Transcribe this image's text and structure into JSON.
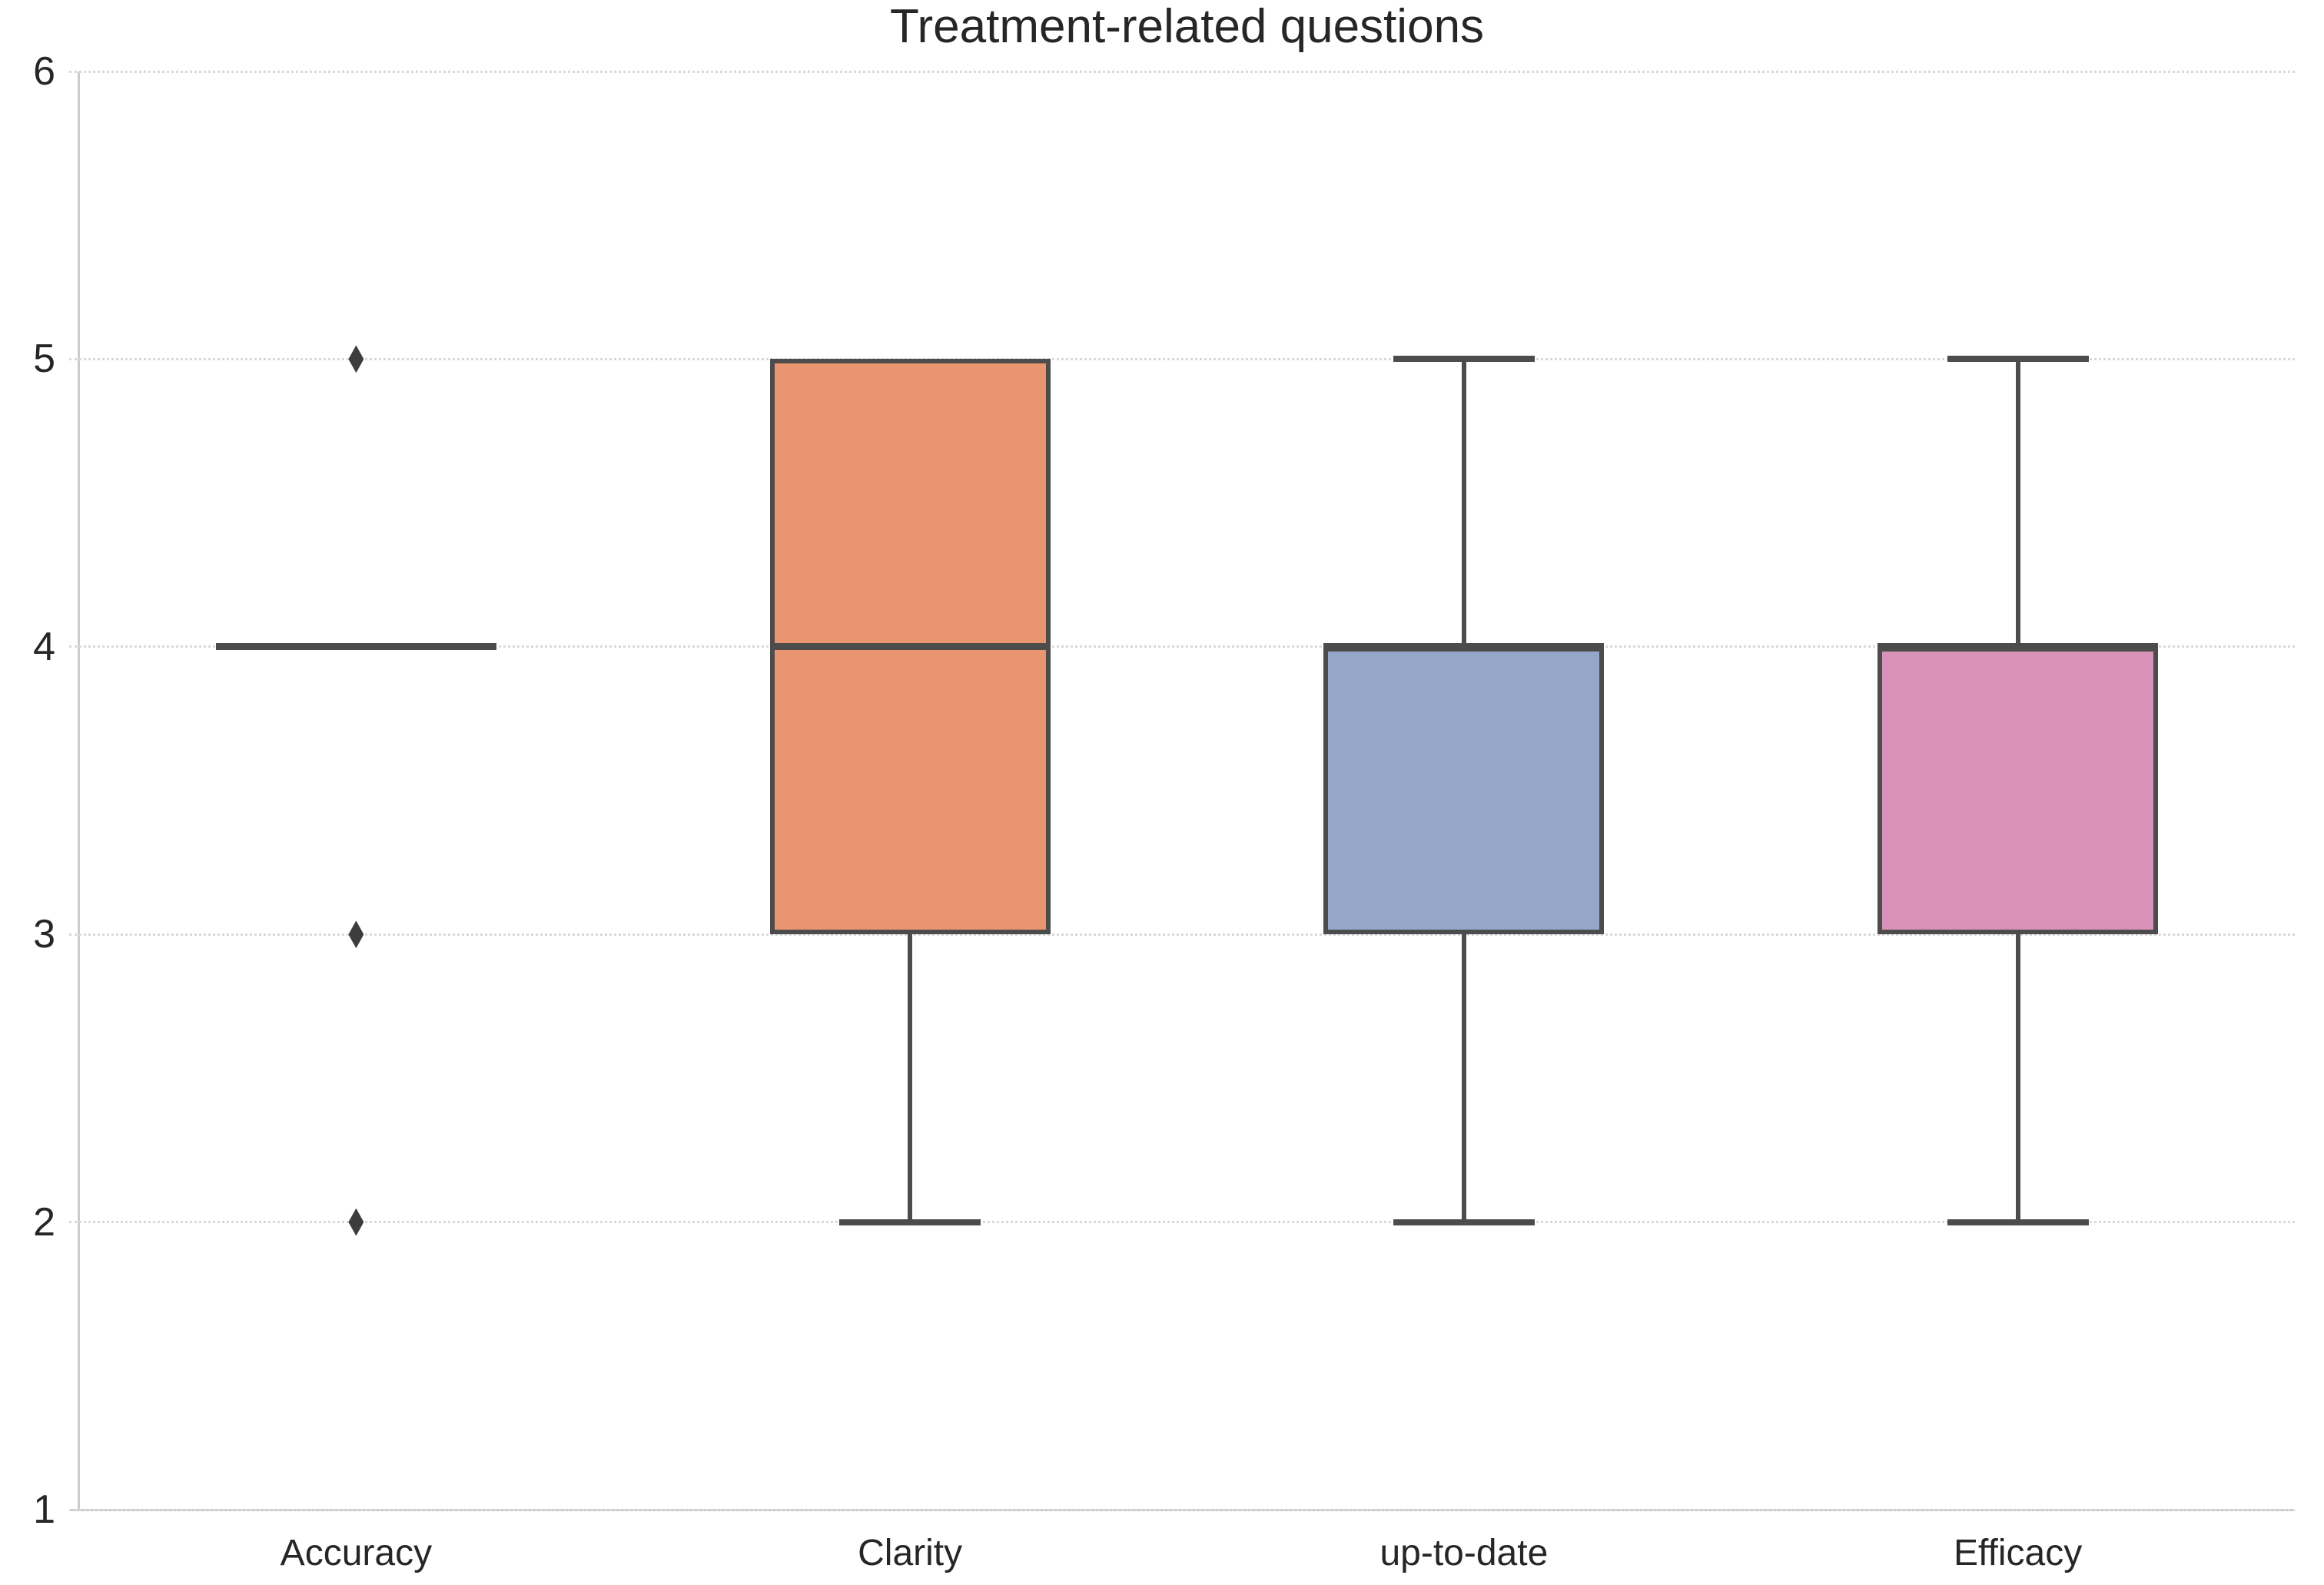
{
  "chart_data": {
    "type": "boxplot",
    "title": "Treatment-related questions",
    "categories": [
      "Accuracy",
      "Clarity",
      "up-to-date",
      "Efficacy"
    ],
    "xlabel": "",
    "ylabel": "",
    "ylim": [
      1,
      6
    ],
    "y_ticks": [
      6,
      5,
      4,
      3,
      2,
      1
    ],
    "grid": "horizontal-dotted",
    "legend": "none",
    "series": [
      {
        "name": "Accuracy",
        "q1": 4,
        "median": 4,
        "q3": 4,
        "whisker_low": 4,
        "whisker_high": 4,
        "outliers": [
          5,
          3,
          2
        ],
        "fill_color": "#7ab8a2"
      },
      {
        "name": "Clarity",
        "q1": 3,
        "median": 4,
        "q3": 5,
        "whisker_low": 2,
        "whisker_high": 5,
        "outliers": [],
        "fill_color": "#e99670"
      },
      {
        "name": "up-to-date",
        "q1": 3,
        "median": 4,
        "q3": 4,
        "whisker_low": 2,
        "whisker_high": 5,
        "outliers": [],
        "fill_color": "#95a7c8"
      },
      {
        "name": "Efficacy",
        "q1": 3,
        "median": 4,
        "q3": 4,
        "whisker_low": 2,
        "whisker_high": 5,
        "outliers": [],
        "fill_color": "#d992b7"
      }
    ],
    "colors": {
      "line": "#4c4c4c",
      "flier": "#3d3d3d",
      "grid": "#d9d9d9",
      "spine": "#cccccc",
      "text": "#262626",
      "background": "#ffffff"
    }
  }
}
